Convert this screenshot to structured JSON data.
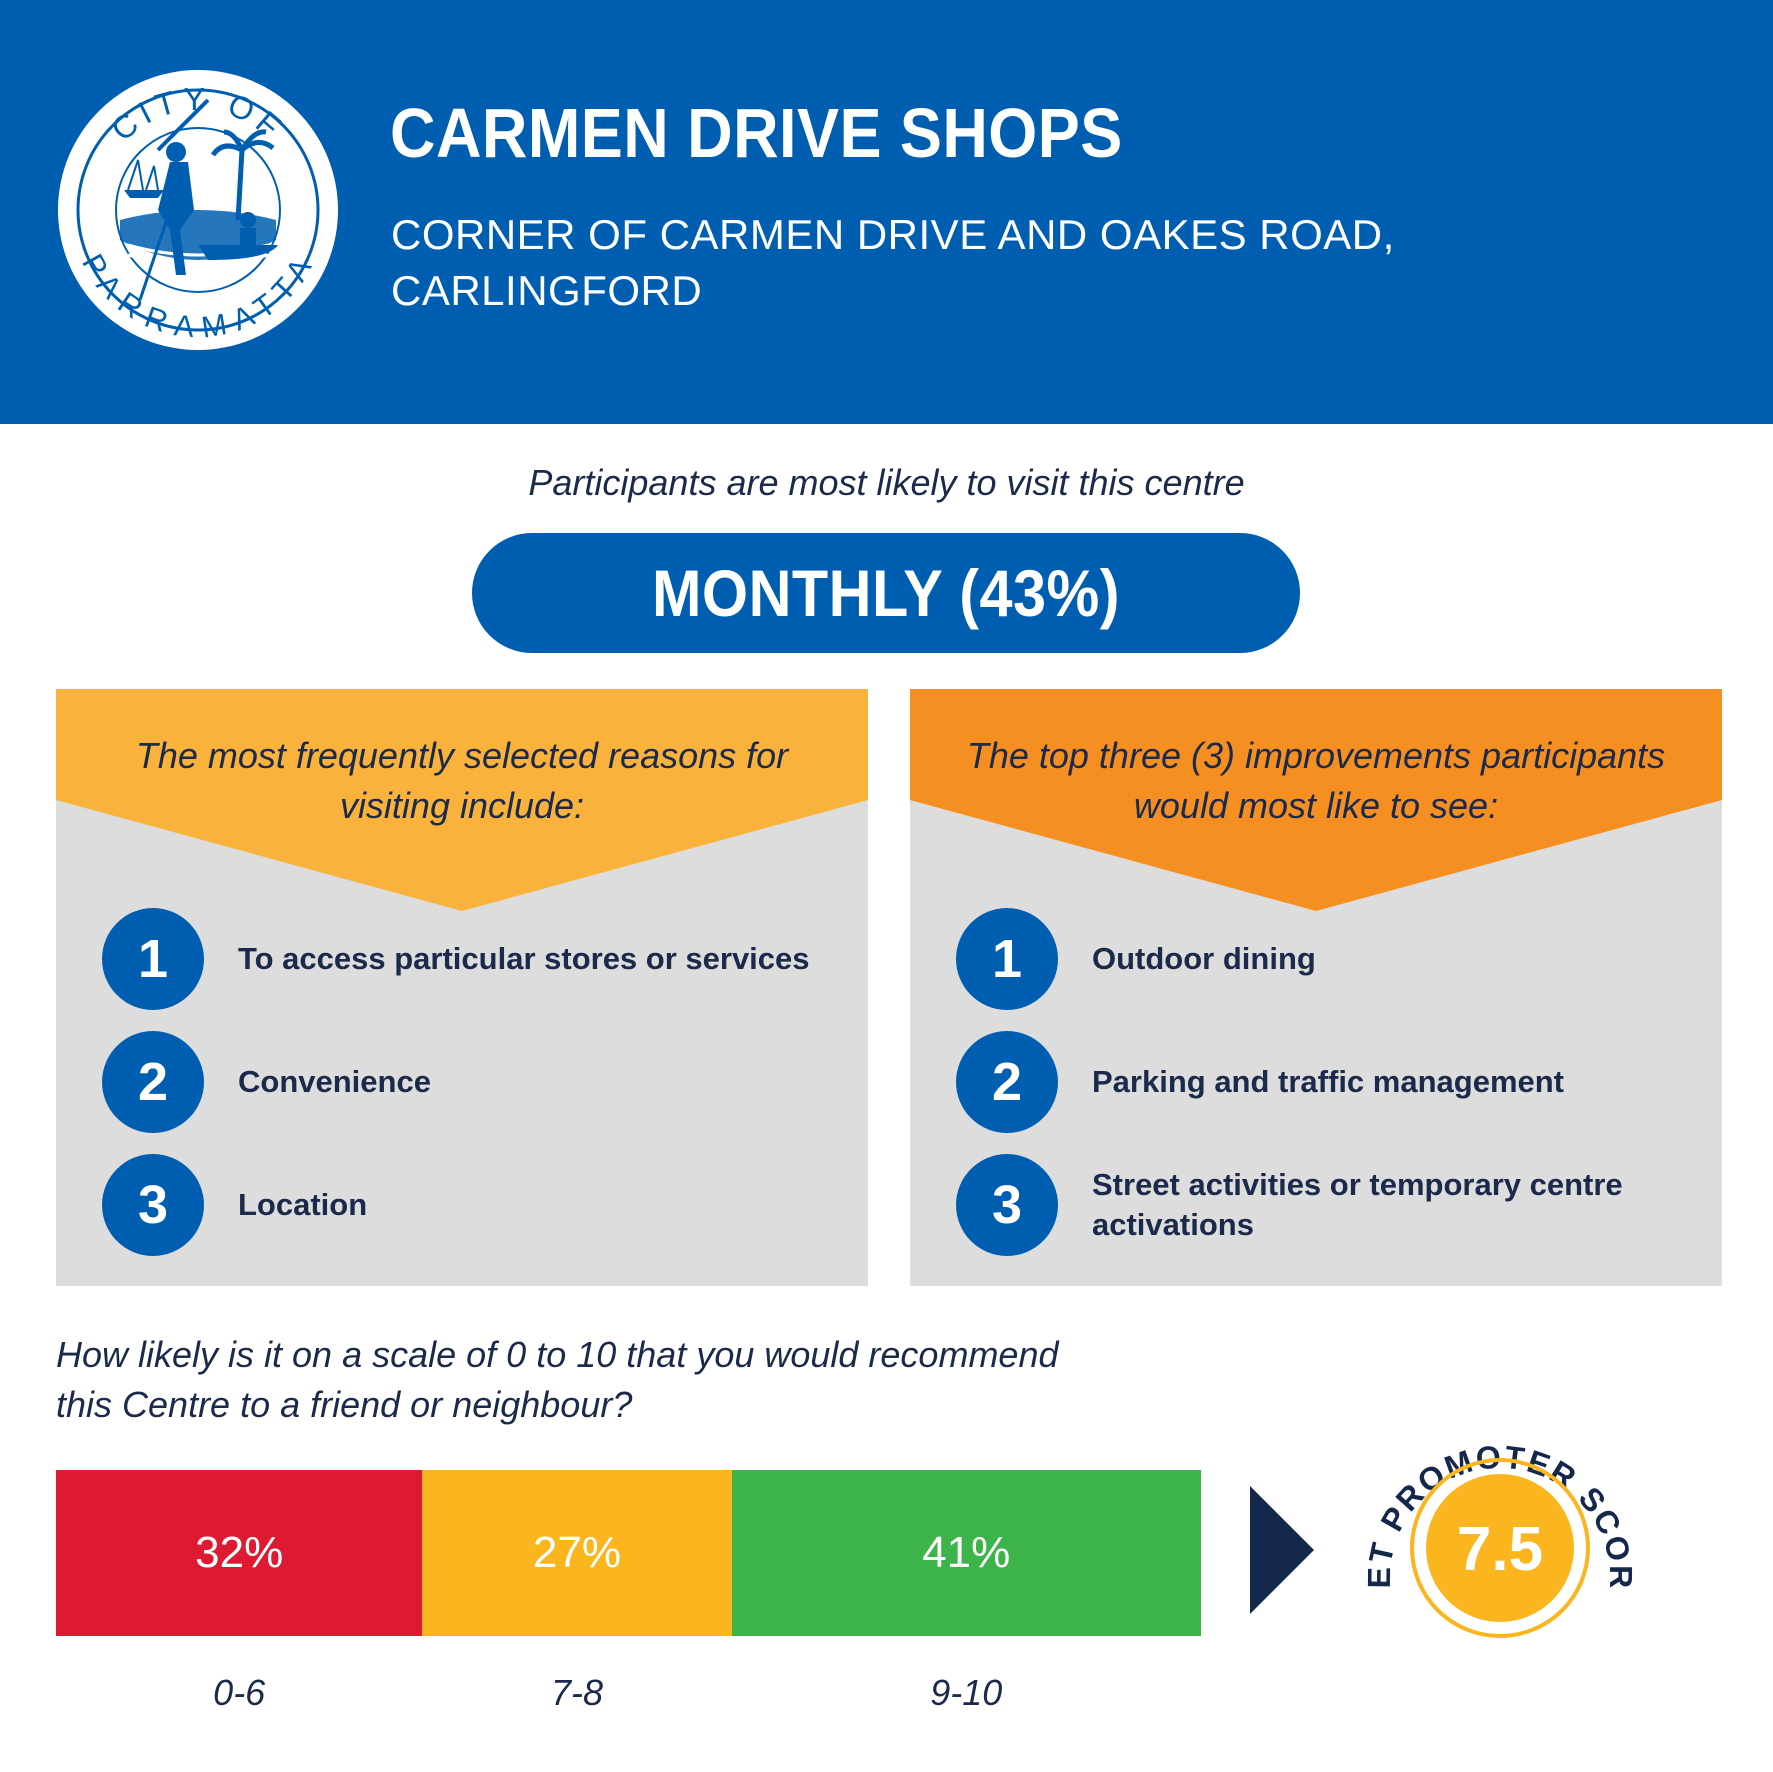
{
  "header": {
    "logo": {
      "top_text": "CITY OF",
      "bottom_text": "PARRAMATTA",
      "icon": "city-of-parramatta-seal"
    },
    "title": "CARMEN DRIVE SHOPS",
    "address_line1": "CORNER OF CARMEN DRIVE AND OAKES ROAD,",
    "address_line2": "CARLINGFORD"
  },
  "frequency": {
    "intro": "Participants are most likely to visit this centre",
    "value": "MONTHLY (43%)"
  },
  "reasons": {
    "heading_line1": "The most frequently selected reasons for",
    "heading_line2": "visiting include:",
    "items": [
      {
        "num": "1",
        "label": "To access particular stores or services"
      },
      {
        "num": "2",
        "label": "Convenience"
      },
      {
        "num": "3",
        "label": "Location"
      }
    ]
  },
  "improvements": {
    "heading_line1": "The top three (3) improvements participants",
    "heading_line2": "would most like to see:",
    "items": [
      {
        "num": "1",
        "label": "Outdoor dining"
      },
      {
        "num": "2",
        "label": "Parking and traffic management"
      },
      {
        "num": "3",
        "label": "Street activities or temporary centre activations"
      }
    ]
  },
  "recommend": {
    "question_line1": "How likely is it on a scale of 0 to 10 that you would recommend",
    "question_line2": "this Centre to a friend or neighbour?",
    "segments": [
      {
        "range": "0-6",
        "label": "32%",
        "value": 32,
        "color": "#dd1a32"
      },
      {
        "range": "7-8",
        "label": "27%",
        "value": 27,
        "color": "#fbb51e"
      },
      {
        "range": "9-10",
        "label": "41%",
        "value": 41,
        "color": "#3cb44a"
      }
    ]
  },
  "nps": {
    "label": "NET PROMOTER SCORE",
    "value": "7.5",
    "color": "#fbb51e"
  },
  "colors": {
    "brand_blue": "#005eb0",
    "navy": "#14284b",
    "light_orange": "#f9b23b",
    "orange": "#f58f22",
    "panel_grey": "#dcdddc"
  }
}
